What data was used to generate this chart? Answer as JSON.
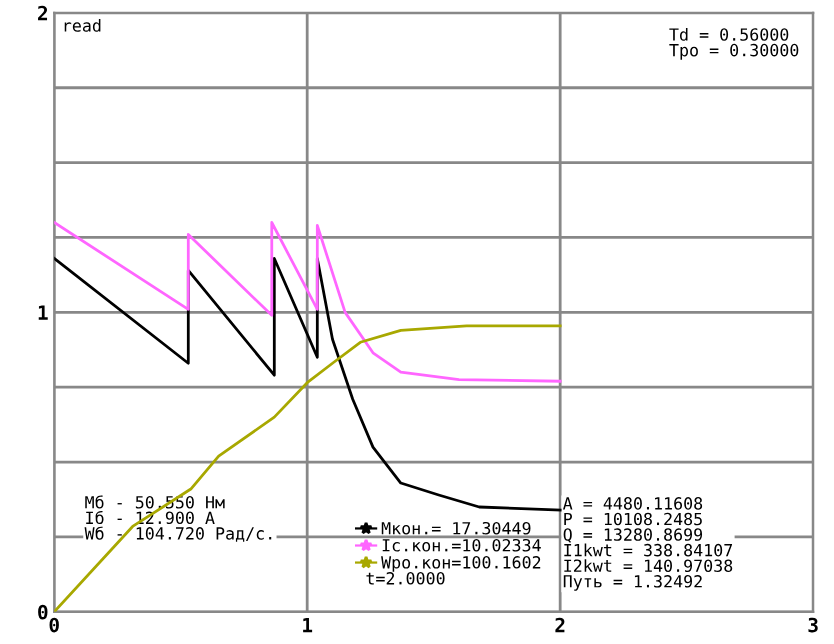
{
  "chart_data": {
    "type": "line",
    "xlim": [
      0,
      3
    ],
    "ylim": [
      0,
      2
    ],
    "xticks": [
      0,
      1,
      2,
      3
    ],
    "yticks": [
      0,
      {
        "value": 0.25,
        "label": null
      },
      {
        "value": 0.5,
        "label": null
      },
      {
        "value": 0.75,
        "label": null
      },
      1,
      {
        "value": 1.25,
        "label": null
      },
      {
        "value": 1.5,
        "label": null
      },
      {
        "value": 1.75,
        "label": null
      },
      2
    ],
    "grid": true,
    "legend": "bottom",
    "marker": "none",
    "line_style": "solid",
    "series": [
      {
        "name": "Мкон.= 17.30449",
        "color": "#000000",
        "x": [
          0,
          0.53,
          0.53,
          0.87,
          0.87,
          1.04,
          1.04,
          1.1,
          1.18,
          1.26,
          1.37,
          1.52,
          1.68,
          2.0
        ],
        "values": [
          1.18,
          0.83,
          1.14,
          0.79,
          1.18,
          0.85,
          1.18,
          0.91,
          0.71,
          0.55,
          0.43,
          0.39,
          0.35,
          0.34
        ]
      },
      {
        "name": "Ic.кон.=10.02334",
        "color": "#ff66ff",
        "x": [
          0,
          0.53,
          0.53,
          0.86,
          0.86,
          1.04,
          1.04,
          1.15,
          1.26,
          1.37,
          1.6,
          2.0
        ],
        "values": [
          1.3,
          1.01,
          1.26,
          0.99,
          1.3,
          1.01,
          1.29,
          1.0,
          0.865,
          0.8,
          0.775,
          0.77
        ]
      },
      {
        "name": "Wро.кон=100.1602",
        "color": "#a8a800",
        "x": [
          0,
          0.31,
          0.54,
          0.65,
          0.87,
          1.0,
          1.1,
          1.21,
          1.37,
          1.63,
          2.0
        ],
        "values": [
          0,
          0.285,
          0.41,
          0.52,
          0.65,
          0.765,
          0.83,
          0.9,
          0.94,
          0.955,
          0.955
        ]
      }
    ],
    "annotations": [
      "read",
      "Td = 0.56000\nТро = 0.30000",
      "Мб - 50.550 Нм\nIб - 12.900 А\nWб - 104.720 Рад/с.",
      "t=2.0000",
      "A = 4480.11608\nP = 10108.2485\nQ = 13280.8699\nI1kwt = 338.84107\nI2kwt = 140.97038\nПуть = 1.32492"
    ]
  }
}
